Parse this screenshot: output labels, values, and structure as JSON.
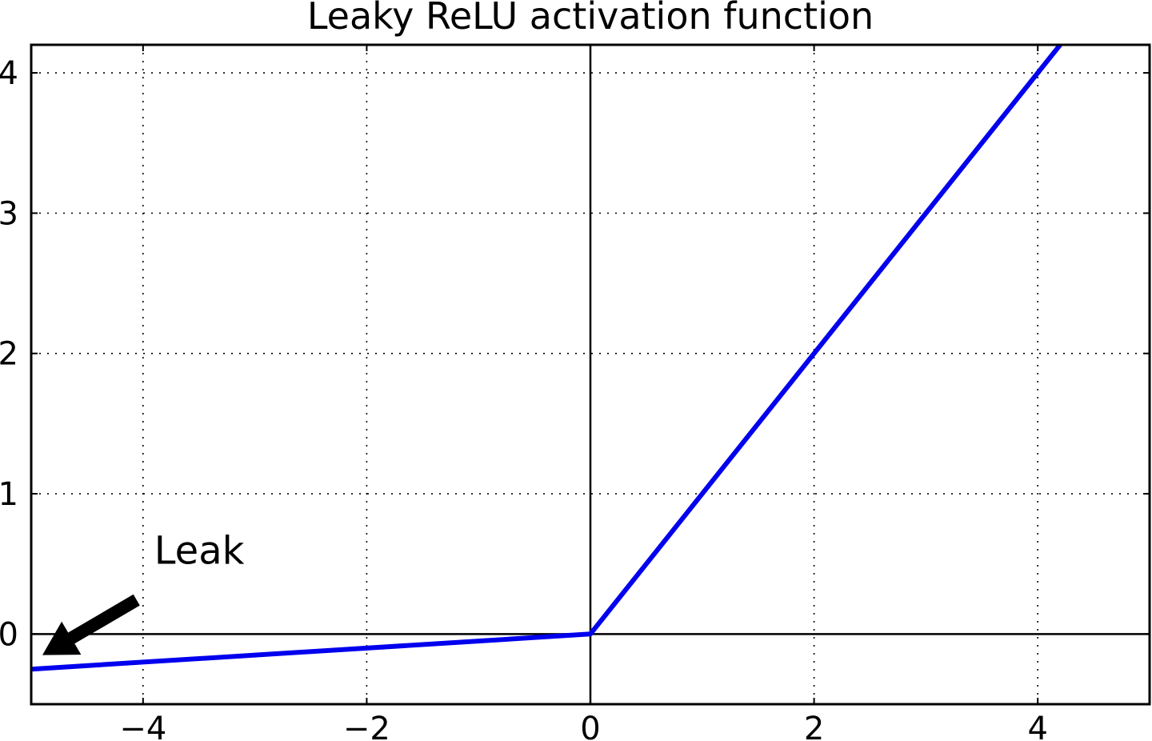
{
  "chart_data": {
    "type": "line",
    "title": "Leaky ReLU activation function",
    "xlabel": "",
    "ylabel": "",
    "xlim": [
      -5,
      5
    ],
    "ylim": [
      -0.5,
      4.2
    ],
    "xticks": [
      -4,
      -2,
      0,
      2,
      4
    ],
    "xtick_labels": [
      "−4",
      "−2",
      "0",
      "2",
      "4"
    ],
    "yticks": [
      0,
      1,
      2,
      3,
      4
    ],
    "ytick_labels": [
      "0",
      "1",
      "2",
      "3",
      "4"
    ],
    "grid": true,
    "axis_zero_lines": true,
    "series": [
      {
        "color": "#0000ee",
        "x": [
          -5,
          0,
          4.2
        ],
        "y": [
          -0.25,
          0,
          4.2
        ]
      }
    ],
    "annotations": [
      {
        "text": "Leak",
        "text_position": [
          -3.9,
          0.5
        ],
        "arrow_tip": [
          -4.9,
          -0.15
        ]
      }
    ]
  }
}
